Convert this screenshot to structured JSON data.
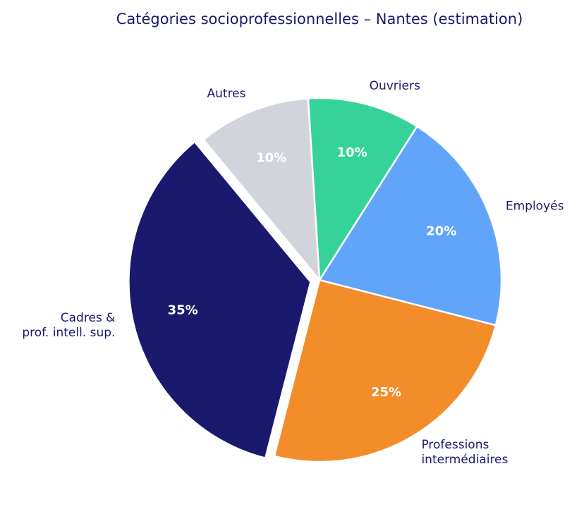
{
  "chart_data": {
    "type": "pie",
    "title": "Catégories socioprofessionnelles – Nantes (estimation)",
    "categories": [
      "Cadres &\nprof. intell. sup.",
      "Professions\nintermédiaires",
      "Employés",
      "Ouvriers",
      "Autres"
    ],
    "values": [
      35,
      25,
      20,
      10,
      10
    ],
    "value_labels": [
      "35%",
      "25%",
      "20%",
      "10%",
      "10%"
    ],
    "colors": [
      "#1b196e",
      "#f28d2a",
      "#61a5fb",
      "#35d399",
      "#d1d5db"
    ],
    "explode": [
      0.05,
      0,
      0,
      0,
      0
    ]
  }
}
